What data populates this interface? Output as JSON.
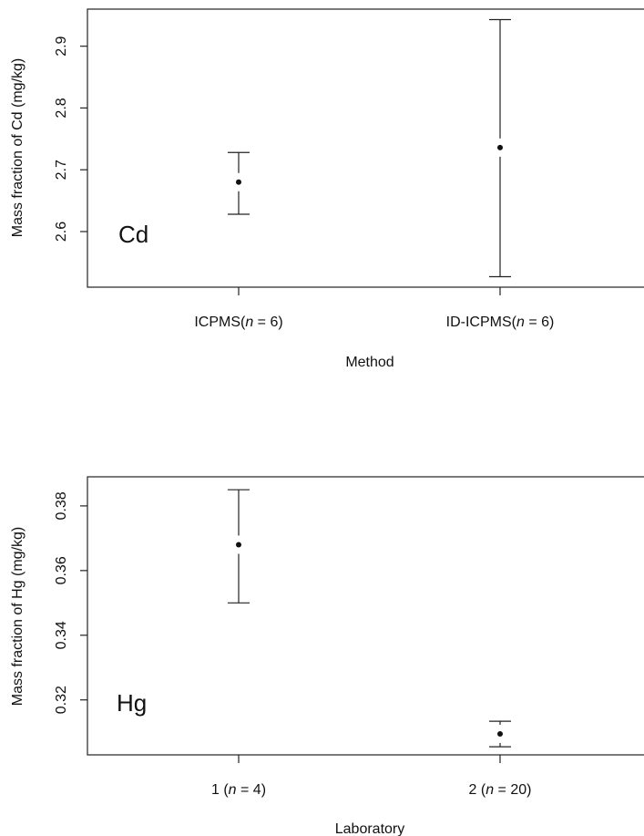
{
  "chart_data": [
    {
      "type": "scatter",
      "panel_label": "Cd",
      "xlabel": "Method",
      "ylabel": "Mass fraction of Cd (mg/kg)",
      "ylim": [
        2.51,
        2.96
      ],
      "yticks": [
        "2.6",
        "2.7",
        "2.8",
        "2.9"
      ],
      "categories": [
        {
          "label": "ICPMS",
          "n_prefix": "(",
          "n_symbol": "n",
          "n_suffix": " = 6)"
        },
        {
          "label": "ID-ICPMS",
          "n_prefix": "(",
          "n_symbol": "n",
          "n_suffix": " = 6)"
        }
      ],
      "points": [
        {
          "mean": 2.68,
          "lower": 2.628,
          "upper": 2.728
        },
        {
          "mean": 2.736,
          "lower": 2.527,
          "upper": 2.943
        }
      ]
    },
    {
      "type": "scatter",
      "panel_label": "Hg",
      "xlabel": "Laboratory",
      "ylabel": "Mass fraction of Hg (mg/kg)",
      "ylim": [
        0.303,
        0.389
      ],
      "yticks": [
        "0.32",
        "0.34",
        "0.36",
        "0.38"
      ],
      "categories": [
        {
          "label": "1",
          "n_prefix": " (",
          "n_symbol": "n",
          "n_suffix": " = 4)"
        },
        {
          "label": "2",
          "n_prefix": " (",
          "n_symbol": "n",
          "n_suffix": " = 20)"
        }
      ],
      "points": [
        {
          "mean": 0.368,
          "lower": 0.35,
          "upper": 0.385
        },
        {
          "mean": 0.3095,
          "lower": 0.3055,
          "upper": 0.3134
        }
      ]
    }
  ]
}
